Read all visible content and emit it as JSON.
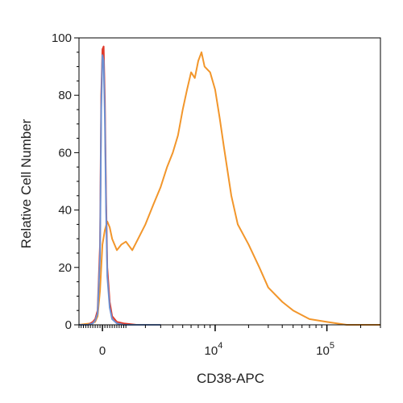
{
  "chart_data": {
    "type": "line",
    "title": "",
    "xlabel": "CD38-APC",
    "ylabel": "Relative Cell Number",
    "x_scale": "biexponential",
    "xlim": [
      -1000,
      300000
    ],
    "ylim": [
      0,
      100
    ],
    "grid": false,
    "legend": "none",
    "y_ticks": [
      "0",
      "20",
      "40",
      "60",
      "80",
      "100"
    ],
    "x_ticks": [
      {
        "base": "0",
        "exp": ""
      },
      {
        "base": "10",
        "exp": "4"
      },
      {
        "base": "10",
        "exp": "5"
      }
    ],
    "series": [
      {
        "color": "#e03a2b",
        "x": [
          -1000,
          -600,
          -400,
          -300,
          -200,
          -100,
          -50,
          0,
          50,
          100,
          150,
          200,
          300,
          400,
          600,
          900,
          1500,
          3000
        ],
        "y": [
          0,
          0,
          1,
          2,
          5,
          28,
          80,
          96,
          97,
          78,
          45,
          20,
          8,
          3,
          1,
          0.5,
          0,
          0
        ]
      },
      {
        "color": "#6d8fd1",
        "x": [
          -1000,
          -600,
          -400,
          -300,
          -200,
          -100,
          -50,
          0,
          50,
          100,
          150,
          200,
          300,
          400,
          600,
          900,
          1500,
          3000
        ],
        "y": [
          0,
          0,
          0.5,
          1.5,
          4,
          24,
          75,
          94,
          92,
          72,
          40,
          17,
          6,
          2,
          0.5,
          0,
          0,
          0
        ]
      },
      {
        "color": "#f2962b",
        "x": [
          -1000,
          -500,
          -300,
          -200,
          -100,
          0,
          100,
          200,
          300,
          400,
          600,
          800,
          1000,
          1300,
          1600,
          2000,
          2500,
          3000,
          3500,
          4000,
          4500,
          5000,
          5500,
          6000,
          6500,
          7000,
          7500,
          8000,
          9000,
          10000,
          11000,
          12000,
          14000,
          16000,
          20000,
          25000,
          30000,
          40000,
          50000,
          70000,
          100000,
          150000,
          300000
        ],
        "y": [
          0,
          0.5,
          1,
          3,
          12,
          28,
          33,
          36,
          34,
          30,
          26,
          28,
          29,
          26,
          30,
          35,
          42,
          48,
          55,
          60,
          66,
          75,
          82,
          88,
          86,
          92,
          95,
          90,
          88,
          82,
          72,
          62,
          45,
          35,
          28,
          20,
          13,
          8,
          5,
          2,
          1,
          0,
          0
        ]
      }
    ]
  }
}
